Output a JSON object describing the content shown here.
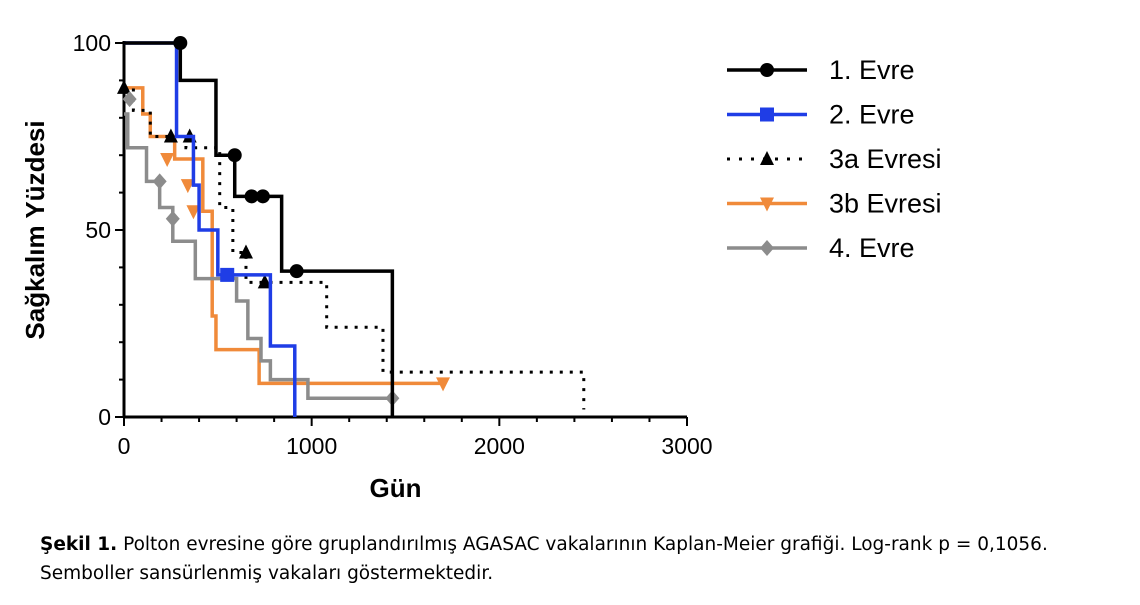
{
  "chart_data": {
    "type": "line",
    "subtype": "kaplan-meier step",
    "xlabel": "Gün",
    "ylabel": "Sağkalım Yüzdesi",
    "xlim": [
      0,
      3000
    ],
    "ylim": [
      0,
      100
    ],
    "xticks": [
      0,
      1000,
      2000,
      3000
    ],
    "yticks": [
      0,
      50,
      100
    ],
    "grid": false,
    "legend_position": "right",
    "series": [
      {
        "name": "1. Evre",
        "color": "#000000",
        "line_style": "solid",
        "marker": "circle",
        "steps": [
          [
            0,
            100
          ],
          [
            300,
            100
          ],
          [
            300,
            90
          ],
          [
            490,
            90
          ],
          [
            490,
            70
          ],
          [
            590,
            70
          ],
          [
            590,
            59
          ],
          [
            840,
            59
          ],
          [
            840,
            39
          ],
          [
            1430,
            39
          ],
          [
            1430,
            0
          ]
        ],
        "censored": [
          [
            300,
            100
          ],
          [
            590,
            70
          ],
          [
            680,
            59
          ],
          [
            740,
            59
          ],
          [
            920,
            39
          ]
        ]
      },
      {
        "name": "2. Evre",
        "color": "#1f3de6",
        "line_style": "solid",
        "marker": "square",
        "steps": [
          [
            0,
            100
          ],
          [
            280,
            100
          ],
          [
            280,
            75
          ],
          [
            370,
            75
          ],
          [
            370,
            62
          ],
          [
            400,
            62
          ],
          [
            400,
            50
          ],
          [
            500,
            50
          ],
          [
            500,
            38
          ],
          [
            780,
            38
          ],
          [
            780,
            19
          ],
          [
            910,
            19
          ],
          [
            910,
            0
          ]
        ],
        "censored": [
          [
            550,
            38
          ]
        ]
      },
      {
        "name": "3a Evresi",
        "color": "#000000",
        "line_style": "dotted",
        "marker": "triangle-up",
        "steps": [
          [
            0,
            88
          ],
          [
            50,
            88
          ],
          [
            50,
            82
          ],
          [
            140,
            82
          ],
          [
            140,
            75
          ],
          [
            330,
            75
          ],
          [
            330,
            72
          ],
          [
            510,
            72
          ],
          [
            510,
            56
          ],
          [
            580,
            56
          ],
          [
            580,
            44
          ],
          [
            650,
            44
          ],
          [
            650,
            36
          ],
          [
            1080,
            36
          ],
          [
            1080,
            24
          ],
          [
            1380,
            24
          ],
          [
            1380,
            12
          ],
          [
            2450,
            12
          ],
          [
            2450,
            2
          ]
        ],
        "censored": [
          [
            0,
            88
          ],
          [
            250,
            75
          ],
          [
            350,
            75
          ],
          [
            650,
            44
          ],
          [
            750,
            36
          ]
        ]
      },
      {
        "name": "3b Evresi",
        "color": "#f08a3a",
        "line_style": "solid",
        "marker": "triangle-down",
        "steps": [
          [
            0,
            88
          ],
          [
            100,
            88
          ],
          [
            100,
            81
          ],
          [
            140,
            81
          ],
          [
            140,
            75
          ],
          [
            270,
            75
          ],
          [
            270,
            69
          ],
          [
            420,
            69
          ],
          [
            420,
            55
          ],
          [
            470,
            55
          ],
          [
            470,
            27
          ],
          [
            490,
            27
          ],
          [
            490,
            18
          ],
          [
            720,
            18
          ],
          [
            720,
            9
          ],
          [
            1700,
            9
          ]
        ],
        "censored": [
          [
            230,
            69
          ],
          [
            340,
            62
          ],
          [
            370,
            55
          ],
          [
            1700,
            9
          ]
        ]
      },
      {
        "name": "4. Evre",
        "color": "#8c8c8c",
        "line_style": "solid",
        "marker": "diamond",
        "steps": [
          [
            0,
            81
          ],
          [
            20,
            81
          ],
          [
            20,
            72
          ],
          [
            120,
            72
          ],
          [
            120,
            63
          ],
          [
            190,
            63
          ],
          [
            190,
            56
          ],
          [
            260,
            56
          ],
          [
            260,
            47
          ],
          [
            380,
            47
          ],
          [
            380,
            37
          ],
          [
            600,
            37
          ],
          [
            600,
            31
          ],
          [
            660,
            31
          ],
          [
            660,
            21
          ],
          [
            730,
            21
          ],
          [
            730,
            15
          ],
          [
            780,
            15
          ],
          [
            780,
            10
          ],
          [
            980,
            10
          ],
          [
            980,
            5
          ],
          [
            1430,
            5
          ]
        ],
        "censored": [
          [
            30,
            85
          ],
          [
            190,
            63
          ],
          [
            260,
            53
          ],
          [
            1430,
            5
          ]
        ]
      }
    ]
  },
  "caption": {
    "label": "Şekil 1.",
    "text": " Polton evresine göre gruplandırılmış AGASAC vakalarının Kaplan-Meier grafiği. Log-rank p = 0,1056. Semboller sansürlenmiş vakaları göstermektedir."
  }
}
